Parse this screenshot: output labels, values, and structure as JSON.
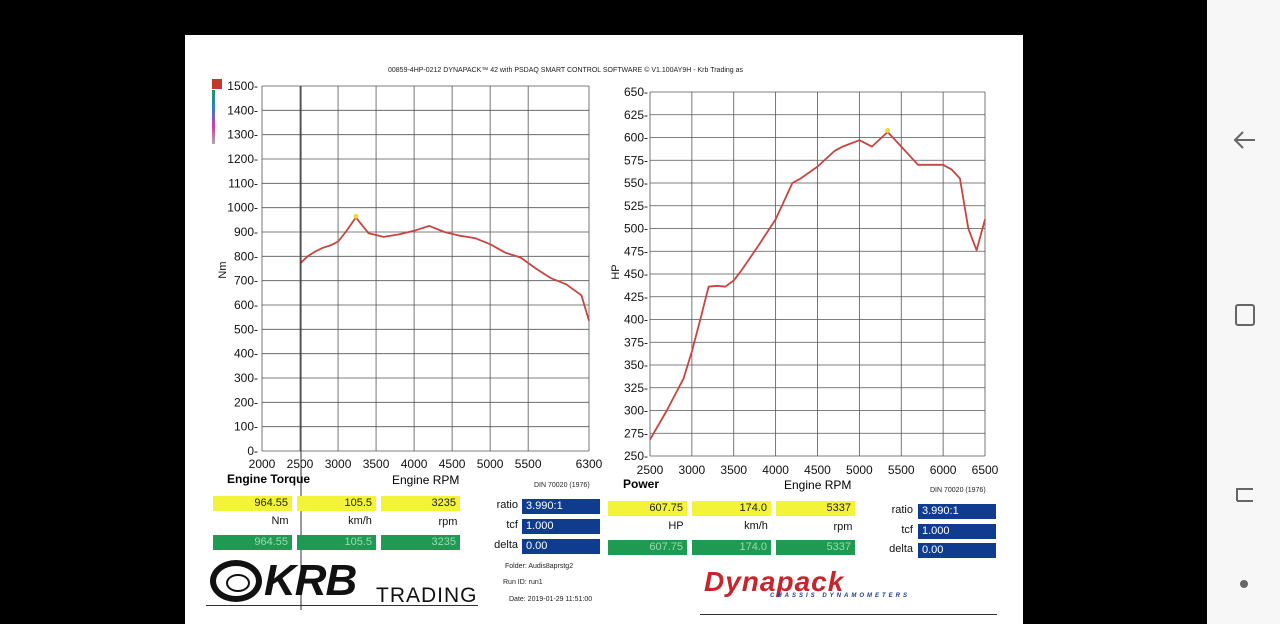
{
  "header": "00859-4HP-0212 DYNAPACK™ 42 with PSDAQ SMART CONTROL SOFTWARE © V1.100AY9H - Krb Trading as",
  "colors": {
    "curve": "#c8453f",
    "grid": "#555555",
    "yellow": "#f3f33a",
    "green": "#1e9a52",
    "blue": "#0f3c8f",
    "legend_red": "#c0392b"
  },
  "chart_data": [
    {
      "type": "line",
      "title": "Engine Torque",
      "xlabel": "Engine RPM",
      "ylabel": "Nm",
      "xlim": [
        2000,
        6300
      ],
      "ylim": [
        0,
        1500
      ],
      "x_ticks": [
        2000,
        2500,
        3000,
        3500,
        4000,
        4500,
        5000,
        5500,
        6300
      ],
      "y_ticks": [
        0,
        100,
        200,
        300,
        400,
        500,
        600,
        700,
        800,
        900,
        1000,
        1100,
        1200,
        1300,
        1400,
        1500
      ],
      "grid": true,
      "peak": {
        "x": 3235,
        "y": 964.55
      },
      "series": [
        {
          "x": [
            2500,
            2600,
            2700,
            2800,
            2900,
            3000,
            3100,
            3235,
            3400,
            3600,
            3800,
            4000,
            4200,
            4400,
            4600,
            4800,
            5000,
            5200,
            5400,
            5600,
            5800,
            6000,
            6200,
            6300
          ],
          "y": [
            770,
            800,
            820,
            835,
            845,
            860,
            900,
            960,
            895,
            880,
            890,
            905,
            925,
            900,
            885,
            875,
            850,
            815,
            795,
            750,
            710,
            685,
            640,
            535
          ]
        }
      ]
    },
    {
      "type": "line",
      "title": "Power",
      "xlabel": "Engine RPM",
      "ylabel": "HP",
      "xlim": [
        2500,
        6500
      ],
      "ylim": [
        250,
        650
      ],
      "x_ticks": [
        2500,
        3000,
        3500,
        4000,
        4500,
        5000,
        5500,
        6000,
        6500
      ],
      "y_ticks": [
        250,
        275,
        300,
        325,
        350,
        375,
        400,
        425,
        450,
        475,
        500,
        525,
        550,
        575,
        600,
        625,
        650
      ],
      "grid": true,
      "peak": {
        "x": 5337,
        "y": 607.75
      },
      "series": [
        {
          "x": [
            2500,
            2700,
            2900,
            3000,
            3100,
            3200,
            3300,
            3400,
            3500,
            3600,
            3800,
            4000,
            4100,
            4200,
            4300,
            4500,
            4700,
            4800,
            5000,
            5150,
            5337,
            5500,
            5700,
            5800,
            6000,
            6100,
            6200,
            6300,
            6400,
            6500
          ],
          "y": [
            268,
            300,
            335,
            365,
            400,
            436,
            437,
            436,
            443,
            455,
            482,
            510,
            530,
            550,
            555,
            568,
            585,
            590,
            597,
            590,
            606,
            590,
            570,
            570,
            570,
            565,
            555,
            500,
            476,
            510
          ]
        }
      ]
    }
  ],
  "left_readout": {
    "title": "Engine Torque",
    "xlabel": "Engine RPM",
    "y1": "964.55",
    "y2": "105.5",
    "y3": "3235",
    "u1": "Nm",
    "u2": "km/h",
    "u3": "rpm",
    "g1": "964.55",
    "g2": "105.5",
    "g3": "3235"
  },
  "right_readout": {
    "title": "Power",
    "xlabel": "Engine RPM",
    "y1": "607.75",
    "y2": "174.0",
    "y3": "5337",
    "u1": "HP",
    "u2": "km/h",
    "u3": "rpm",
    "g1": "607.75",
    "g2": "174.0",
    "g3": "5337"
  },
  "settings_left": {
    "ratio_label": "ratio",
    "ratio": "3.990:1",
    "tcf_label": "tcf",
    "tcf": "1.000",
    "delta_label": "delta",
    "delta": "0.00",
    "din": "DIN 70020 (1976)"
  },
  "settings_right": {
    "ratio_label": "ratio",
    "ratio": "3.990:1",
    "tcf_label": "tcf",
    "tcf": "1.000",
    "delta_label": "delta",
    "delta": "0.00",
    "din": "DIN 70020 (1976)"
  },
  "info": {
    "folder": "Folder:   Audis8aprstg2",
    "run": "Run ID:  run1",
    "date": "Date:  2019-01-29 11:51:00"
  },
  "logo": {
    "krb": "KRB",
    "trading": "TRADING",
    "dynapack": "Dynapack",
    "dyn_sub": "CHASSIS DYNAMOMETERS"
  },
  "nav": {
    "back": "back-icon",
    "home": "home-icon",
    "recents": "recents-icon",
    "dot": "dot-icon"
  }
}
